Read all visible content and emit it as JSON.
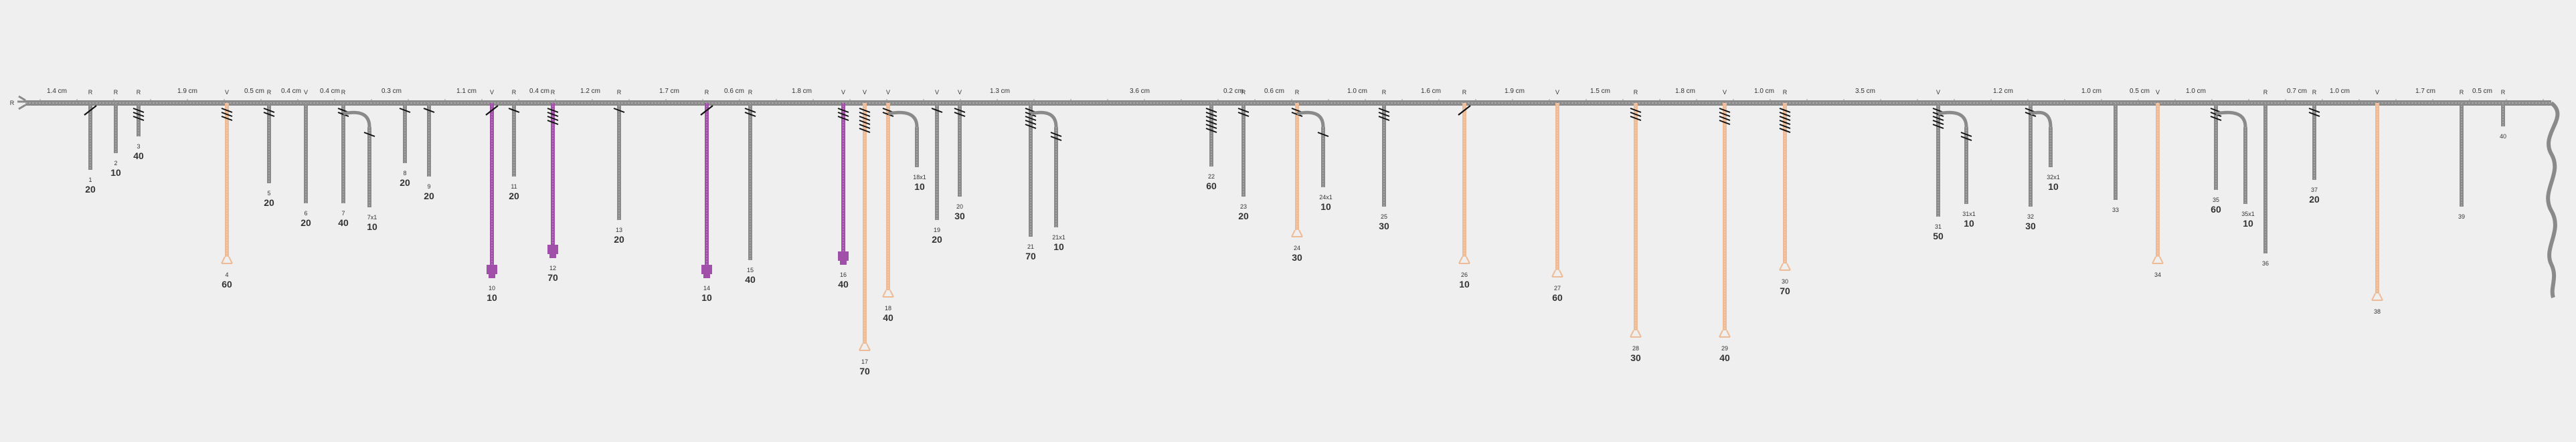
{
  "colors": {
    "grey": "#8a8a8a",
    "grey_dark": "#555555",
    "orange": "#eebb97",
    "purple": "#a050a8",
    "text": "#333333"
  },
  "origin_label": "R",
  "gap_labels": [
    "1.4 cm",
    "1.9 cm",
    "0.5 cm",
    "0.4 cm",
    "0.4 cm",
    "0.3 cm",
    "1.1 cm",
    "0.4 cm",
    "1.2 cm",
    "1.7 cm",
    "0.6 cm",
    "1.8 cm",
    "1.3 cm",
    "3.6 cm",
    "0.2 cm",
    "0.6 cm",
    "1.0 cm",
    "1.6 cm",
    "1.9 cm",
    "1.5 cm",
    "1.8 cm",
    "1.0 cm",
    "3.5 cm",
    "1.2 cm",
    "1.0 cm",
    "0.5 cm",
    "1.0 cm",
    "0.7 cm",
    "1.0 cm",
    "1.7 cm",
    "0.5 cm"
  ],
  "branches": [
    {
      "top": "R",
      "num": "1",
      "val": "20",
      "color": "grey",
      "len": 100,
      "hatch": 1,
      "hatchStyle": "single"
    },
    {
      "top": "R",
      "num": "2",
      "val": "10",
      "color": "grey",
      "len": 75,
      "hatch": 0
    },
    {
      "top": "R",
      "num": "3",
      "val": "40",
      "color": "grey",
      "len": 50,
      "hatch": 3
    },
    {
      "top": "V",
      "num": "4",
      "val": "60",
      "color": "orange",
      "len": 230,
      "hatch": 3,
      "cap": "flare"
    },
    {
      "top": "R",
      "num": "5",
      "val": "20",
      "color": "grey",
      "len": 120,
      "hatch": 2
    },
    {
      "top": "V",
      "num": "6",
      "val": "20",
      "color": "grey",
      "len": 150,
      "hatch": 0
    },
    {
      "top": "R",
      "num": "7",
      "val": "40",
      "color": "grey",
      "len": 150,
      "hatch": 2
    },
    {
      "top": "",
      "num": "7x1",
      "val": "10",
      "color": "grey",
      "len": 120,
      "hatch": 1,
      "side": true
    },
    {
      "top": "",
      "num": "8",
      "val": "20",
      "color": "grey",
      "len": 90,
      "hatch": 1
    },
    {
      "top": "",
      "num": "9",
      "val": "20",
      "color": "grey",
      "len": 110,
      "hatch": 1
    },
    {
      "top": "V",
      "num": "10",
      "val": "10",
      "color": "purple",
      "len": 250,
      "hatch": 1,
      "hatchStyle": "single",
      "cap": "clamp"
    },
    {
      "top": "R",
      "num": "11",
      "val": "20",
      "color": "grey",
      "len": 110,
      "hatch": 1
    },
    {
      "top": "R",
      "num": "12",
      "val": "70",
      "color": "purple",
      "len": 220,
      "hatch": 4,
      "cap": "clamp"
    },
    {
      "top": "R",
      "num": "13",
      "val": "20",
      "color": "grey",
      "len": 175,
      "hatch": 1
    },
    {
      "top": "R",
      "num": "14",
      "val": "10",
      "color": "purple",
      "len": 250,
      "hatch": 1,
      "hatchStyle": "single",
      "cap": "clamp"
    },
    {
      "top": "R",
      "num": "15",
      "val": "40",
      "color": "grey",
      "len": 235,
      "hatch": 2
    },
    {
      "top": "V",
      "num": "16",
      "val": "40",
      "color": "purple",
      "len": 230,
      "hatch": 3,
      "cap": "clamp"
    },
    {
      "top": "V",
      "num": "17",
      "val": "70",
      "color": "orange",
      "len": 360,
      "hatch": 6,
      "cap": "flare"
    },
    {
      "top": "V",
      "num": "18",
      "val": "40",
      "color": "orange",
      "len": 280,
      "hatch": 2,
      "cap": "flare"
    },
    {
      "top": "",
      "num": "18x1",
      "val": "10",
      "color": "grey",
      "len": 60,
      "hatch": 0,
      "side": true
    },
    {
      "top": "V",
      "num": "19",
      "val": "20",
      "color": "grey",
      "len": 175,
      "hatch": 1
    },
    {
      "top": "V",
      "num": "20",
      "val": "30",
      "color": "grey",
      "len": 140,
      "hatch": 2
    },
    {
      "top": "",
      "num": "21",
      "val": "70",
      "color": "grey",
      "len": 200,
      "hatch": 5
    },
    {
      "top": "",
      "num": "21x1",
      "val": "10",
      "color": "grey",
      "len": 150,
      "hatch": 2,
      "side": true
    },
    {
      "top": "",
      "num": "22",
      "val": "60",
      "color": "grey",
      "len": 95,
      "hatch": 6
    },
    {
      "top": "R",
      "num": "23",
      "val": "20",
      "color": "grey",
      "len": 140,
      "hatch": 2
    },
    {
      "top": "R",
      "num": "24",
      "val": "30",
      "color": "orange",
      "len": 190,
      "hatch": 2,
      "cap": "flare"
    },
    {
      "top": "",
      "num": "24x1",
      "val": "10",
      "color": "grey",
      "len": 90,
      "hatch": 1,
      "side": true
    },
    {
      "top": "R",
      "num": "25",
      "val": "30",
      "color": "grey",
      "len": 155,
      "hatch": 3
    },
    {
      "top": "R",
      "num": "26",
      "val": "10",
      "color": "orange",
      "len": 230,
      "hatch": 1,
      "hatchStyle": "single",
      "cap": "flare"
    },
    {
      "top": "V",
      "num": "27",
      "val": "60",
      "color": "orange",
      "len": 250,
      "hatch": 0,
      "cap": "flare"
    },
    {
      "top": "R",
      "num": "28",
      "val": "30",
      "color": "orange",
      "len": 340,
      "hatch": 3,
      "cap": "flare"
    },
    {
      "top": "V",
      "num": "29",
      "val": "40",
      "color": "orange",
      "len": 340,
      "hatch": 4,
      "cap": "flare"
    },
    {
      "top": "R",
      "num": "30",
      "val": "70",
      "color": "orange",
      "len": 240,
      "hatch": 6,
      "cap": "flare"
    },
    {
      "top": "V",
      "num": "31",
      "val": "50",
      "color": "grey",
      "len": 170,
      "hatch": 5
    },
    {
      "top": "",
      "num": "31x1",
      "val": "10",
      "color": "grey",
      "len": 115,
      "hatch": 2,
      "side": true
    },
    {
      "top": "",
      "num": "32",
      "val": "30",
      "color": "grey",
      "len": 155,
      "hatch": 2
    },
    {
      "top": "",
      "num": "32x1",
      "val": "10",
      "color": "grey",
      "len": 60,
      "hatch": 0,
      "side": true
    },
    {
      "top": "",
      "num": "33",
      "val": "",
      "color": "grey",
      "len": 145,
      "hatch": 0
    },
    {
      "top": "V",
      "num": "34",
      "val": "",
      "color": "orange",
      "len": 230,
      "hatch": 0,
      "cap": "flare"
    },
    {
      "top": "",
      "num": "35",
      "val": "60",
      "color": "grey",
      "len": 130,
      "hatch": 3
    },
    {
      "top": "",
      "num": "35x1",
      "val": "10",
      "color": "grey",
      "len": 115,
      "hatch": 0,
      "side": true
    },
    {
      "top": "R",
      "num": "36",
      "val": "",
      "color": "grey",
      "len": 225,
      "hatch": 0
    },
    {
      "top": "R",
      "num": "37",
      "val": "20",
      "color": "grey",
      "len": 115,
      "hatch": 2
    },
    {
      "top": "V",
      "num": "38",
      "val": "",
      "color": "orange",
      "len": 285,
      "hatch": 0,
      "cap": "flare"
    },
    {
      "top": "R",
      "num": "39",
      "val": "",
      "color": "grey",
      "len": 155,
      "hatch": 0
    },
    {
      "top": "R",
      "num": "40",
      "val": "",
      "color": "grey",
      "len": 35,
      "hatch": 0
    }
  ]
}
